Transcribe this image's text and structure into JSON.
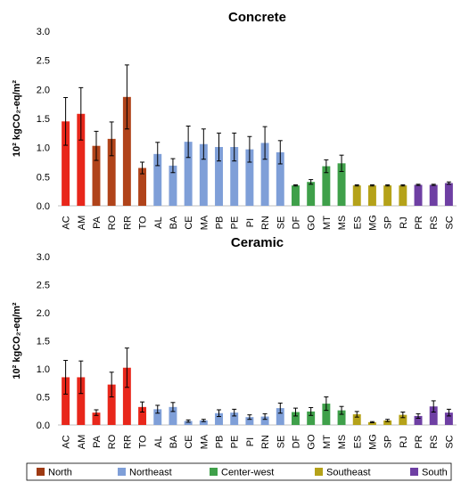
{
  "figure": {
    "legend": [
      {
        "name": "North",
        "color": "#9E3A12"
      },
      {
        "name": "Northeast",
        "color": "#7F9FD8"
      },
      {
        "name": "Center-west",
        "color": "#3FA04A"
      },
      {
        "name": "Southeast",
        "color": "#B5A219"
      },
      {
        "name": "South",
        "color": "#6E3FA3"
      }
    ],
    "legend_placement": "bottom"
  },
  "chart_data": [
    {
      "type": "bar",
      "title": "Concrete",
      "ylabel": "10² kgCO₂-eq/m²",
      "ylim": [
        0,
        3.0
      ],
      "yticks": [
        "0.0",
        "0.5",
        "1.0",
        "1.5",
        "2.0",
        "2.5",
        "3.0"
      ],
      "grid": false,
      "error_bars": true,
      "categories": [
        "AC",
        "AM",
        "PA",
        "RO",
        "RR",
        "TO",
        "AL",
        "BA",
        "CE",
        "MA",
        "PB",
        "PE",
        "PI",
        "RN",
        "SE",
        "DF",
        "GO",
        "MT",
        "MS",
        "ES",
        "MG",
        "SP",
        "RJ",
        "PR",
        "RS",
        "SC"
      ],
      "regions": [
        "North",
        "North",
        "North",
        "North",
        "North",
        "North",
        "Northeast",
        "Northeast",
        "Northeast",
        "Northeast",
        "Northeast",
        "Northeast",
        "Northeast",
        "Northeast",
        "Northeast",
        "Center-west",
        "Center-west",
        "Center-west",
        "Center-west",
        "Southeast",
        "Southeast",
        "Southeast",
        "Southeast",
        "South",
        "South",
        "South"
      ],
      "colors": [
        "#E8271B",
        "#E8271B",
        "#B0431A",
        "#B0431A",
        "#B0431A",
        "#B0431A",
        "#7F9FD8",
        "#7F9FD8",
        "#7F9FD8",
        "#7F9FD8",
        "#7F9FD8",
        "#7F9FD8",
        "#7F9FD8",
        "#7F9FD8",
        "#7F9FD8",
        "#3FA04A",
        "#3FA04A",
        "#3FA04A",
        "#3FA04A",
        "#B5A219",
        "#B5A219",
        "#B5A219",
        "#B5A219",
        "#6E3FA3",
        "#6E3FA3",
        "#6E3FA3"
      ],
      "values": [
        1.45,
        1.58,
        1.03,
        1.15,
        1.87,
        0.65,
        0.89,
        0.69,
        1.1,
        1.06,
        1.01,
        1.01,
        0.97,
        1.08,
        0.92,
        0.35,
        0.41,
        0.68,
        0.73,
        0.35,
        0.35,
        0.35,
        0.35,
        0.36,
        0.36,
        0.39
      ],
      "errors": [
        0.41,
        0.45,
        0.25,
        0.29,
        0.55,
        0.1,
        0.2,
        0.12,
        0.27,
        0.26,
        0.24,
        0.24,
        0.22,
        0.28,
        0.2,
        0.01,
        0.04,
        0.11,
        0.14,
        0.01,
        0.01,
        0.01,
        0.01,
        0.01,
        0.01,
        0.02
      ]
    },
    {
      "type": "bar",
      "title": "Ceramic",
      "ylabel": "10² kgCO₂-eq/m²",
      "ylim": [
        0,
        3.0
      ],
      "yticks": [
        "0.0",
        "0.5",
        "1.0",
        "1.5",
        "2.0",
        "2.5",
        "3.0"
      ],
      "grid": false,
      "error_bars": true,
      "categories": [
        "AC",
        "AM",
        "PA",
        "RO",
        "RR",
        "TO",
        "AL",
        "BA",
        "CE",
        "MA",
        "PB",
        "PE",
        "PI",
        "RN",
        "SE",
        "DF",
        "GO",
        "MT",
        "MS",
        "ES",
        "MG",
        "SP",
        "RJ",
        "PR",
        "RS",
        "SC"
      ],
      "regions": [
        "North",
        "North",
        "North",
        "North",
        "North",
        "North",
        "Northeast",
        "Northeast",
        "Northeast",
        "Northeast",
        "Northeast",
        "Northeast",
        "Northeast",
        "Northeast",
        "Northeast",
        "Center-west",
        "Center-west",
        "Center-west",
        "Center-west",
        "Southeast",
        "Southeast",
        "Southeast",
        "Southeast",
        "South",
        "South",
        "South"
      ],
      "colors": [
        "#E8271B",
        "#E8271B",
        "#E8271B",
        "#E8271B",
        "#E8271B",
        "#E8271B",
        "#7F9FD8",
        "#7F9FD8",
        "#7F9FD8",
        "#7F9FD8",
        "#7F9FD8",
        "#7F9FD8",
        "#7F9FD8",
        "#7F9FD8",
        "#7F9FD8",
        "#3FA04A",
        "#3FA04A",
        "#3FA04A",
        "#3FA04A",
        "#B5A219",
        "#B5A219",
        "#B5A219",
        "#B5A219",
        "#6E3FA3",
        "#6E3FA3",
        "#6E3FA3"
      ],
      "values": [
        0.85,
        0.85,
        0.22,
        0.72,
        1.02,
        0.32,
        0.28,
        0.32,
        0.07,
        0.08,
        0.21,
        0.22,
        0.14,
        0.15,
        0.3,
        0.23,
        0.24,
        0.38,
        0.26,
        0.19,
        0.05,
        0.08,
        0.18,
        0.16,
        0.33,
        0.22
      ],
      "errors": [
        0.3,
        0.29,
        0.05,
        0.22,
        0.35,
        0.09,
        0.07,
        0.08,
        0.02,
        0.02,
        0.06,
        0.06,
        0.04,
        0.05,
        0.09,
        0.07,
        0.07,
        0.12,
        0.07,
        0.05,
        0.01,
        0.02,
        0.05,
        0.04,
        0.1,
        0.06
      ]
    }
  ]
}
